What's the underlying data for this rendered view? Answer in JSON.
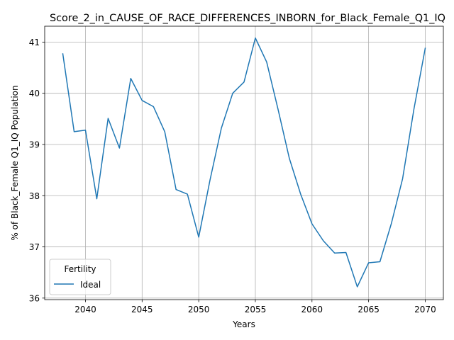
{
  "chart_data": {
    "type": "line",
    "title": "Score_2_in_CAUSE_OF_RACE_DIFFERENCES_INBORN_for_Black_Female_Q1_IQ",
    "xlabel": "Years",
    "ylabel": "% of Black_Female Q1_IQ Population",
    "xlim": [
      2036.4,
      2071.6
    ],
    "ylim": [
      35.97,
      41.31
    ],
    "xticks": [
      2040,
      2045,
      2050,
      2055,
      2060,
      2065,
      2070
    ],
    "yticks": [
      36,
      37,
      38,
      39,
      40,
      41
    ],
    "grid": true,
    "legend": {
      "title": "Fertility",
      "position": "lower-left"
    },
    "x": [
      2038,
      2039,
      2040,
      2041,
      2042,
      2043,
      2044,
      2045,
      2046,
      2047,
      2048,
      2049,
      2050,
      2051,
      2052,
      2053,
      2054,
      2055,
      2056,
      2057,
      2058,
      2059,
      2060,
      2061,
      2062,
      2063,
      2064,
      2065,
      2066,
      2067,
      2068,
      2069,
      2070
    ],
    "series": [
      {
        "name": "Ideal",
        "color": "#1f77b4",
        "values": [
          40.77,
          39.25,
          39.28,
          37.94,
          39.51,
          38.93,
          40.29,
          39.86,
          39.74,
          39.25,
          38.12,
          38.03,
          37.19,
          38.31,
          39.32,
          40.0,
          40.22,
          41.08,
          40.61,
          39.69,
          38.73,
          38.03,
          37.45,
          37.12,
          36.88,
          36.89,
          36.22,
          36.69,
          36.71,
          37.45,
          38.33,
          39.69,
          40.88
        ]
      }
    ]
  }
}
